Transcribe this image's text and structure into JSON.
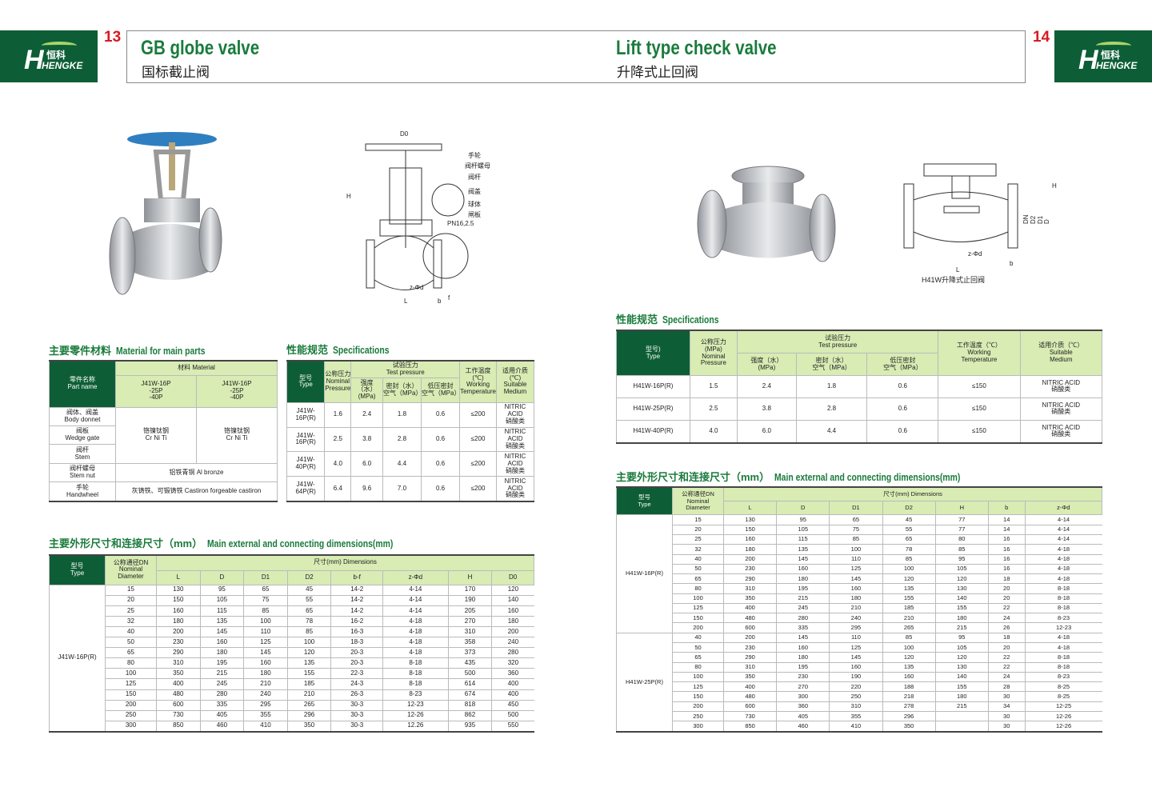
{
  "brand": {
    "cn": "恒科",
    "en": "HENGKE",
    "mark": "H"
  },
  "left": {
    "page": "13",
    "title": "GB globe valve",
    "subtitle": "国标截止阀",
    "diagram_labels": [
      "手轮",
      "阀杆螺母",
      "阀杆",
      "阀盖",
      "球体",
      "闸板",
      "PN16,2.5",
      "D0",
      "H",
      "L",
      "z-Φd",
      "b",
      "f",
      "DN",
      "D6",
      "D2",
      "D1",
      "D"
    ],
    "materials": {
      "title_cn": "主要零件材料",
      "title_en": "Material for main parts",
      "part_header": "零件名称",
      "part_header_en": "Part name",
      "material_header": "材料 Material",
      "model_cols": [
        "J41W-16P\n-25P\n-40P",
        "J41W-16P\n-25P\n-40P"
      ],
      "parts": [
        {
          "cn": "阀体、阀盖",
          "en": "Body donnet"
        },
        {
          "cn": "阀板",
          "en": "Wedge gate"
        },
        {
          "cn": "阀杆",
          "en": "Stem"
        },
        {
          "cn": "阀杆螺母",
          "en": "Stem nut"
        },
        {
          "cn": "手轮",
          "en": "Handwheel"
        }
      ],
      "crniti": "铬镍钛钢\nCr Ni Ti",
      "stem_nut": "铝铁青铜 Al bronze",
      "handwheel": "灰铸铁、可锻铸铁 Castiron forgeable castiron"
    },
    "specs": {
      "title_cn": "性能规范",
      "title_en": "Specifications",
      "headers": {
        "type": "型号\nType",
        "nominal": "公称压力\nNominal\nPressure",
        "test": "试验压力\nTest pressure",
        "strength": "强度（水）\n(MPa)",
        "seal": "密封（水）\n空气（MPa）",
        "low": "低压密封\n空气（MPa）",
        "temp": "工作温度\n(℃)\nWorking\nTemperature",
        "medium": "适用介质\n(℃)\nSuitable\nMedium"
      },
      "rows": [
        [
          "J41W-16P(R)",
          "1.6",
          "2.4",
          "1.8",
          "0.6",
          "≤200",
          "NITRIC ACID\n硝酸类"
        ],
        [
          "J41W-16P(R)",
          "2.5",
          "3.8",
          "2.8",
          "0.6",
          "≤200",
          "NITRIC ACID\n硝酸类"
        ],
        [
          "J41W-40P(R)",
          "4.0",
          "6.0",
          "4.4",
          "0.6",
          "≤200",
          "NITRIC ACID\n硝酸类"
        ],
        [
          "J41W-64P(R)",
          "6.4",
          "9.6",
          "7.0",
          "0.6",
          "≤200",
          "NITRIC ACID\n硝酸类"
        ]
      ]
    },
    "dims": {
      "title_cn": "主要外形尺寸和连接尺寸（mm）",
      "title_en": "Main external and connecting dimensions(mm)",
      "type_header": "型号\nType",
      "dn_header": "公称通径DN\nNominal\nDiameter",
      "dim_header": "尺寸(mm) Dimensions",
      "cols": [
        "L",
        "D",
        "D1",
        "D2",
        "b-f",
        "z-Φd",
        "H",
        "D0"
      ],
      "groups": [
        {
          "type": "J41W-16P(R)",
          "rows": [
            [
              "15",
              "130",
              "95",
              "65",
              "45",
              "14-2",
              "4-14",
              "170",
              "120"
            ],
            [
              "20",
              "150",
              "105",
              "75",
              "55",
              "14-2",
              "4-14",
              "190",
              "140"
            ],
            [
              "25",
              "160",
              "115",
              "85",
              "65",
              "14-2",
              "4-14",
              "205",
              "160"
            ],
            [
              "32",
              "180",
              "135",
              "100",
              "78",
              "16-2",
              "4-18",
              "270",
              "180"
            ],
            [
              "40",
              "200",
              "145",
              "110",
              "85",
              "16-3",
              "4-18",
              "310",
              "200"
            ],
            [
              "50",
              "230",
              "160",
              "125",
              "100",
              "18-3",
              "4-18",
              "358",
              "240"
            ],
            [
              "65",
              "290",
              "180",
              "145",
              "120",
              "20-3",
              "4-18",
              "373",
              "280"
            ],
            [
              "80",
              "310",
              "195",
              "160",
              "135",
              "20-3",
              "8-18",
              "435",
              "320"
            ],
            [
              "100",
              "350",
              "215",
              "180",
              "155",
              "22-3",
              "8-18",
              "500",
              "360"
            ],
            [
              "125",
              "400",
              "245",
              "210",
              "185",
              "24-3",
              "8-18",
              "614",
              "400"
            ],
            [
              "150",
              "480",
              "280",
              "240",
              "210",
              "26-3",
              "8-23",
              "674",
              "400"
            ],
            [
              "200",
              "600",
              "335",
              "295",
              "265",
              "30-3",
              "12-23",
              "818",
              "450"
            ],
            [
              "250",
              "730",
              "405",
              "355",
              "296",
              "30-3",
              "12-26",
              "862",
              "500"
            ],
            [
              "300",
              "850",
              "460",
              "410",
              "350",
              "30-3",
              "12.26",
              "935",
              "550"
            ]
          ]
        }
      ]
    }
  },
  "right": {
    "page": "14",
    "title": "Lift type check valve",
    "subtitle": "升降式止回阀",
    "diagram_caption": "H41W升降式止回阀",
    "diagram_labels": [
      "H",
      "DN",
      "D2",
      "D1",
      "D",
      "z-Φd",
      "L",
      "b"
    ],
    "specs": {
      "title_cn": "性能规范",
      "title_en": "Specifications",
      "headers": {
        "type": "型号)\nType",
        "nominal": "公称压力\n(MPa)\nNominal\nPressure",
        "test": "试验压力\nTest pressure",
        "strength": "强度（水）\n(MPa)",
        "seal": "密封（水）\n空气（MPa）",
        "low": "低压密封\n空气（MPa）",
        "temp": "工作温度（℃）\nWorking\nTemperature",
        "medium": "适用介质（℃）\nSuitable\nMedium"
      },
      "rows": [
        [
          "H41W-16P(R)",
          "1.5",
          "2.4",
          "1.8",
          "0.6",
          "≤150",
          "NITRIC ACID\n硝酸类"
        ],
        [
          "H41W-25P(R)",
          "2.5",
          "3.8",
          "2.8",
          "0.6",
          "≤150",
          "NITRIC ACID\n硝酸类"
        ],
        [
          "H41W-40P(R)",
          "4.0",
          "6.0",
          "4.4",
          "0.6",
          "≤150",
          "NITRIC ACID\n硝酸类"
        ]
      ]
    },
    "dims": {
      "title_cn": "主要外形尺寸和连接尺寸（mm）",
      "title_en": "Main external and connecting dimensions(mm)",
      "type_header": "型号\nType",
      "dn_header": "公称通径DN\nNominal\nDiameter",
      "dim_header": "尺寸(mm) Dimensions",
      "cols": [
        "L",
        "D",
        "D1",
        "D2",
        "H",
        "b",
        "z-Φd"
      ],
      "groups": [
        {
          "type": "H41W-16P(R)",
          "rows": [
            [
              "15",
              "130",
              "95",
              "65",
              "45",
              "77",
              "14",
              "4-14"
            ],
            [
              "20",
              "150",
              "105",
              "75",
              "55",
              "77",
              "14",
              "4-14"
            ],
            [
              "25",
              "160",
              "115",
              "85",
              "65",
              "80",
              "16",
              "4-14"
            ],
            [
              "32",
              "180",
              "135",
              "100",
              "78",
              "85",
              "16",
              "4-18"
            ],
            [
              "40",
              "200",
              "145",
              "110",
              "85",
              "95",
              "16",
              "4-18"
            ],
            [
              "50",
              "230",
              "160",
              "125",
              "100",
              "105",
              "16",
              "4-18"
            ],
            [
              "65",
              "290",
              "180",
              "145",
              "120",
              "120",
              "18",
              "4-18"
            ],
            [
              "80",
              "310",
              "195",
              "160",
              "135",
              "130",
              "20",
              "8-18"
            ],
            [
              "100",
              "350",
              "215",
              "180",
              "155",
              "140",
              "20",
              "8-18"
            ],
            [
              "125",
              "400",
              "245",
              "210",
              "185",
              "155",
              "22",
              "8-18"
            ],
            [
              "150",
              "480",
              "280",
              "240",
              "210",
              "180",
              "24",
              "8-23"
            ],
            [
              "200",
              "600",
              "335",
              "295",
              "265",
              "215",
              "26",
              "12-23"
            ]
          ]
        },
        {
          "type": "H41W-25P(R)",
          "rows": [
            [
              "40",
              "200",
              "145",
              "110",
              "85",
              "95",
              "18",
              "4-18"
            ],
            [
              "50",
              "230",
              "160",
              "125",
              "100",
              "105",
              "20",
              "4-18"
            ],
            [
              "65",
              "290",
              "180",
              "145",
              "120",
              "120",
              "22",
              "8-18"
            ],
            [
              "80",
              "310",
              "195",
              "160",
              "135",
              "130",
              "22",
              "8-18"
            ],
            [
              "100",
              "350",
              "230",
              "190",
              "160",
              "140",
              "24",
              "8-23"
            ],
            [
              "125",
              "400",
              "270",
              "220",
              "188",
              "155",
              "28",
              "8-25"
            ],
            [
              "150",
              "480",
              "300",
              "250",
              "218",
              "180",
              "30",
              "8-25"
            ],
            [
              "200",
              "600",
              "360",
              "310",
              "278",
              "215",
              "34",
              "12-25"
            ],
            [
              "250",
              "730",
              "405",
              "355",
              "296",
              "",
              "30",
              "12-26"
            ],
            [
              "300",
              "850",
              "460",
              "410",
              "350",
              "",
              "30",
              "12-26"
            ]
          ]
        }
      ]
    }
  },
  "colors": {
    "brand_green": "#0d5e36",
    "title_green": "#1a7b3c",
    "header_light": "#d8ecb4",
    "page_number": "#d71a21"
  }
}
